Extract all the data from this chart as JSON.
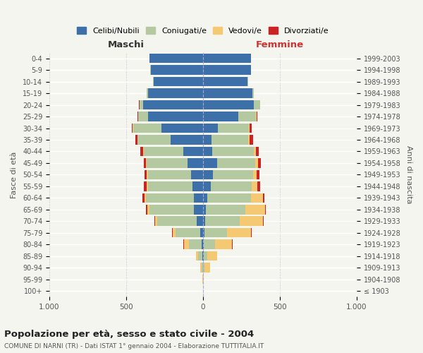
{
  "age_groups": [
    "100+",
    "95-99",
    "90-94",
    "85-89",
    "80-84",
    "75-79",
    "70-74",
    "65-69",
    "60-64",
    "55-59",
    "50-54",
    "45-49",
    "40-44",
    "35-39",
    "30-34",
    "25-29",
    "20-24",
    "15-19",
    "10-14",
    "5-9",
    "0-4"
  ],
  "birth_years": [
    "≤ 1903",
    "1904-1908",
    "1909-1913",
    "1914-1918",
    "1919-1923",
    "1924-1928",
    "1929-1933",
    "1934-1938",
    "1939-1943",
    "1944-1948",
    "1949-1953",
    "1954-1958",
    "1959-1963",
    "1964-1968",
    "1969-1973",
    "1974-1978",
    "1979-1983",
    "1984-1988",
    "1989-1993",
    "1994-1998",
    "1999-2003"
  ],
  "maschi": {
    "celibi": [
      0,
      0,
      2,
      5,
      10,
      20,
      40,
      60,
      60,
      70,
      80,
      100,
      130,
      210,
      270,
      360,
      390,
      360,
      320,
      340,
      350
    ],
    "coniugati": [
      0,
      2,
      8,
      25,
      80,
      160,
      260,
      290,
      310,
      290,
      280,
      265,
      255,
      215,
      185,
      60,
      25,
      5,
      5,
      2,
      0
    ],
    "vedovi": [
      0,
      2,
      10,
      15,
      35,
      15,
      12,
      12,
      10,
      5,
      5,
      5,
      5,
      2,
      2,
      2,
      0,
      0,
      0,
      0,
      0
    ],
    "divorziati": [
      0,
      0,
      0,
      2,
      2,
      5,
      5,
      8,
      15,
      20,
      15,
      15,
      20,
      15,
      8,
      5,
      2,
      0,
      0,
      0,
      0
    ]
  },
  "femmine": {
    "nubili": [
      0,
      0,
      2,
      5,
      5,
      10,
      15,
      20,
      30,
      50,
      65,
      90,
      60,
      55,
      95,
      230,
      330,
      320,
      290,
      310,
      310
    ],
    "coniugate": [
      0,
      2,
      8,
      25,
      75,
      145,
      225,
      255,
      280,
      265,
      260,
      250,
      270,
      240,
      205,
      115,
      40,
      10,
      5,
      2,
      0
    ],
    "vedove": [
      0,
      5,
      35,
      60,
      110,
      155,
      150,
      130,
      80,
      40,
      25,
      20,
      15,
      8,
      5,
      5,
      2,
      0,
      0,
      0,
      0
    ],
    "divorziate": [
      0,
      0,
      0,
      2,
      2,
      8,
      5,
      5,
      10,
      18,
      18,
      18,
      20,
      25,
      12,
      5,
      2,
      0,
      0,
      0,
      0
    ]
  },
  "colors": {
    "celibi": "#3d6fa8",
    "coniugati": "#b5c9a0",
    "vedovi": "#f5c971",
    "divorziati": "#cc2222"
  },
  "xlim": 1000,
  "title": "Popolazione per età, sesso e stato civile - 2004",
  "subtitle": "COMUNE DI NARNI (TR) - Dati ISTAT 1° gennaio 2004 - Elaborazione TUTTITALIA.IT",
  "ylabel_left": "Fasce di età",
  "ylabel_right": "Anni di nascita",
  "xlabel_left": "Maschi",
  "xlabel_right": "Femmine",
  "bg_color": "#f5f5f0",
  "legend_labels": [
    "Celibi/Nubili",
    "Coniugati/e",
    "Vedovi/e",
    "Divorziati/e"
  ]
}
